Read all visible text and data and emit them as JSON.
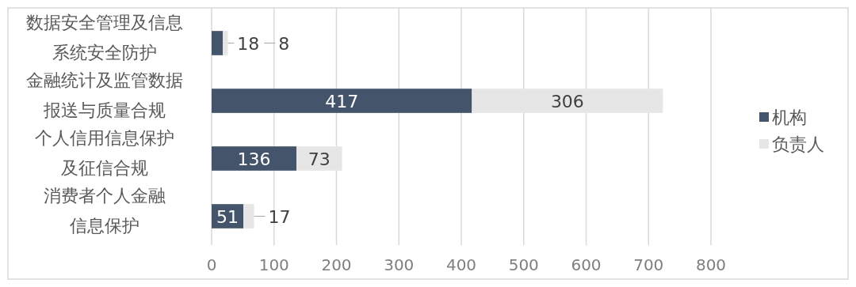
{
  "chart_data": {
    "type": "bar",
    "orientation": "horizontal",
    "stacked": true,
    "categories": [
      "数据安全管理及信息系统安全防护",
      "金融统计及监管数据报送与质量合规",
      "个人信用信息保护及征信合规",
      "消费者个人金融信息保护"
    ],
    "series": [
      {
        "name": "机构",
        "color": "#44546a",
        "values": [
          18,
          417,
          136,
          51
        ]
      },
      {
        "name": "负责人",
        "color": "#e7e6e6",
        "values": [
          8,
          306,
          73,
          17
        ]
      }
    ],
    "xlim": [
      0,
      800
    ],
    "xticks": [
      0,
      100,
      200,
      300,
      400,
      500,
      600,
      700,
      800
    ],
    "grid": "x",
    "legend": "right",
    "data_labels": true
  }
}
